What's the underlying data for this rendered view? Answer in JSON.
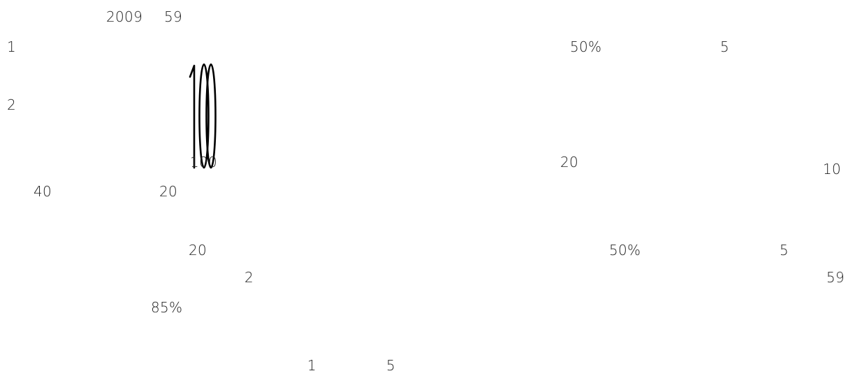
{
  "fragments": {
    "year": "2009",
    "n59_top": "59",
    "n1_left": "1",
    "pct50_top": "50%",
    "n5_top": "5",
    "n2_left": "2",
    "n100": "100",
    "n20_mid": "20",
    "n10_right": "10",
    "n40": "40",
    "n20_left": "20",
    "n20_lower": "20",
    "pct50_lower": "50%",
    "n5_lower": "5",
    "n2_center": "2",
    "n59_right": "59",
    "pct85": "85%",
    "n1_bottom": "1",
    "n5_bottom": "5"
  },
  "glyph_cluster": {
    "text": "100",
    "stroke_color": "#000000"
  }
}
